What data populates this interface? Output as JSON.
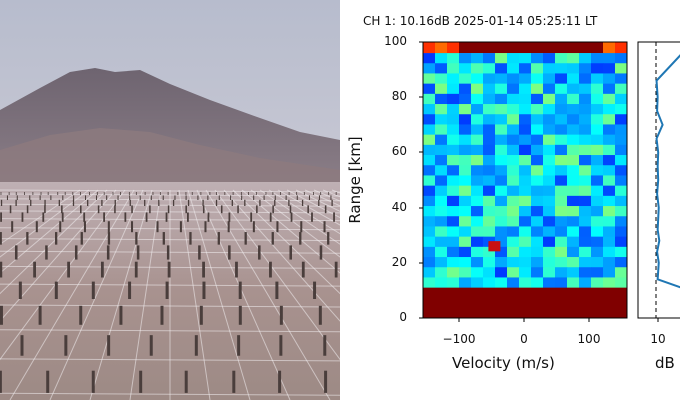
{
  "photo": {
    "subject": "antenna-array-photo"
  },
  "plot": {
    "title": "CH 1: 10.16dB 2025-01-14 05:25:11 LT",
    "ylabel": "Range [km]",
    "velocity_xlabel": "Velocity (m/s)",
    "db_xlabel": "dB",
    "y_ticks": [
      "100",
      "80",
      "60",
      "40",
      "20",
      "0"
    ],
    "velocity_ticks": [
      "−100",
      "0",
      "100"
    ],
    "db_ticks": [
      "10"
    ]
  },
  "chart_data": [
    {
      "type": "heatmap",
      "title": "CH 1: 10.16dB 2025-01-14 05:25:11 LT",
      "xlabel": "Velocity (m/s)",
      "ylabel": "Range [km]",
      "xlim": [
        -150,
        150
      ],
      "ylim": [
        0,
        100
      ],
      "colormap": "jet",
      "highlights": [
        {
          "velocity": -45,
          "range": 26,
          "level": "high"
        }
      ],
      "bands": [
        {
          "range_from": 0,
          "range_to": 11,
          "level": "max",
          "color": "#800000"
        },
        {
          "range_from": 96,
          "range_to": 100,
          "level": "max",
          "color": "#800000"
        }
      ]
    },
    {
      "type": "line",
      "xlabel": "dB",
      "ylabel": "Range [km]",
      "ylim": [
        0,
        100
      ],
      "x_ticks": [
        10
      ],
      "reference_line_x": 10,
      "series": [
        {
          "color": "#1f77b4",
          "x": [
            14.6,
            10.3,
            10.5,
            10.2,
            10.6,
            10.3,
            10.5,
            10.2,
            10.4,
            10.3,
            10.4,
            10.1,
            11.2,
            10.2,
            10.3,
            10.1,
            14.8
          ],
          "y": [
            11,
            14,
            20,
            24,
            28,
            32,
            40,
            45,
            50,
            55,
            60,
            65,
            70,
            75,
            80,
            86,
            96
          ]
        }
      ]
    }
  ]
}
